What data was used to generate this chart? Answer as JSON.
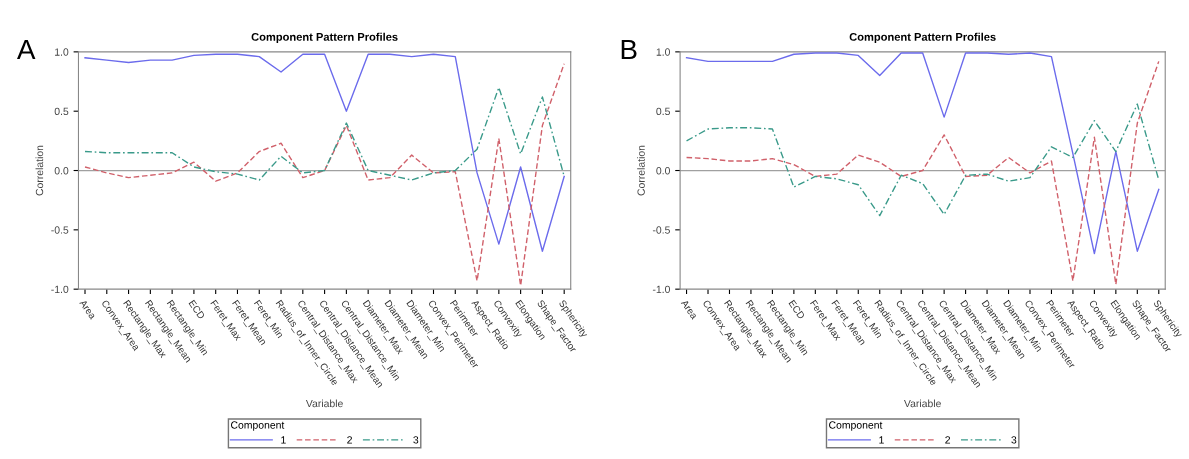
{
  "chart_data": [
    {
      "type": "line",
      "title": "Component Pattern Profiles",
      "xlabel": "Variable",
      "ylabel": "Correlation",
      "legend_title": "Component",
      "legend": "bottom",
      "grid": false,
      "annotations": [
        "A"
      ],
      "categories": [
        "Area",
        "Convex_Area",
        "Rectangle_Max",
        "Rectangle_Mean",
        "Rectangle_Min",
        "ECD",
        "Feret_Max",
        "Feret_Mean",
        "Feret_Min",
        "Radius_of_Inner_Circle",
        "Central_Distance_Max",
        "Central_Distance_Mean",
        "Central_Distance_Min",
        "Diameter_Max",
        "Diameter_Mean",
        "Diameter_Min",
        "Convex_Perimeter",
        "Perimeter",
        "Aspect_Ratio",
        "Convexity",
        "Elongation",
        "Shape_Factor",
        "Sphericity"
      ],
      "ylim": [
        -1.0,
        1.0
      ],
      "yticks": [
        {
          "value": -1.0,
          "label": "-1.0"
        },
        {
          "value": -0.5,
          "label": "-0.5"
        },
        {
          "value": 0.0,
          "label": "0.0"
        },
        {
          "value": 0.5,
          "label": "0.5"
        },
        {
          "value": 1.0,
          "label": "1.0"
        }
      ],
      "ref_lines": [
        {
          "axis": "y",
          "value": 0,
          "color": "#a0a0a0"
        }
      ],
      "series": [
        {
          "name": "1",
          "color": "#6b6bec",
          "line_style": "solid",
          "values": [
            0.95,
            0.93,
            0.91,
            0.93,
            0.93,
            0.97,
            0.98,
            0.98,
            0.96,
            0.83,
            0.98,
            0.98,
            0.5,
            0.98,
            0.98,
            0.96,
            0.98,
            0.96,
            -0.02,
            -0.62,
            0.03,
            -0.68,
            -0.05
          ]
        },
        {
          "name": "2",
          "color": "#d0606a",
          "line_style": "dashed",
          "values": [
            0.03,
            -0.02,
            -0.06,
            -0.04,
            -0.02,
            0.07,
            -0.09,
            -0.02,
            0.16,
            0.23,
            -0.06,
            0.0,
            0.38,
            -0.08,
            -0.06,
            0.13,
            -0.02,
            -0.01,
            -0.93,
            0.27,
            -0.97,
            0.38,
            0.9
          ]
        },
        {
          "name": "3",
          "color": "#3a9a8a",
          "line_style": "dashdot",
          "values": [
            0.16,
            0.15,
            0.15,
            0.15,
            0.15,
            0.03,
            -0.01,
            -0.03,
            -0.08,
            0.12,
            -0.02,
            0.0,
            0.4,
            0.0,
            -0.04,
            -0.08,
            -0.02,
            0.0,
            0.18,
            0.7,
            0.14,
            0.62,
            -0.05
          ]
        }
      ]
    },
    {
      "type": "line",
      "title": "Component Pattern Profiles",
      "xlabel": "Variable",
      "ylabel": "Correlation",
      "legend_title": "Component",
      "legend": "bottom",
      "grid": false,
      "annotations": [
        "B"
      ],
      "categories": [
        "Area",
        "Convex_Area",
        "Rectangle_Max",
        "Rectangle_Mean",
        "Rectangle_Min",
        "ECD",
        "Feret_Max",
        "Feret_Mean",
        "Feret_Min",
        "Radius_of_Inner_Circle",
        "Central_Distance_Max",
        "Central_Distance_Mean",
        "Central_Distance_Min",
        "Diameter_Max",
        "Diameter_Mean",
        "Diameter_Min",
        "Convex_Perimeter",
        "Perimeter",
        "Aspect_Ratio",
        "Convexity",
        "Elongation",
        "Shape_Factor",
        "Sphericity"
      ],
      "ylim": [
        -1.0,
        1.0
      ],
      "yticks": [
        {
          "value": -1.0,
          "label": "-1.0"
        },
        {
          "value": -0.5,
          "label": "-0.5"
        },
        {
          "value": 0.0,
          "label": "0.0"
        },
        {
          "value": 0.5,
          "label": "0.5"
        },
        {
          "value": 1.0,
          "label": "1.0"
        }
      ],
      "ref_lines": [
        {
          "axis": "y",
          "value": 0,
          "color": "#a0a0a0"
        }
      ],
      "series": [
        {
          "name": "1",
          "color": "#6b6bec",
          "line_style": "solid",
          "values": [
            0.95,
            0.92,
            0.92,
            0.92,
            0.92,
            0.98,
            0.99,
            0.99,
            0.97,
            0.8,
            0.99,
            0.99,
            0.45,
            0.99,
            0.99,
            0.98,
            0.99,
            0.96,
            0.14,
            -0.7,
            0.16,
            -0.68,
            -0.16
          ]
        },
        {
          "name": "2",
          "color": "#d0606a",
          "line_style": "dashed",
          "values": [
            0.11,
            0.1,
            0.08,
            0.08,
            0.1,
            0.05,
            -0.05,
            -0.03,
            0.13,
            0.07,
            -0.05,
            0.0,
            0.3,
            -0.05,
            -0.04,
            0.11,
            -0.02,
            0.08,
            -0.93,
            0.28,
            -0.96,
            0.4,
            0.92
          ]
        },
        {
          "name": "3",
          "color": "#3a9a8a",
          "line_style": "dashdot",
          "values": [
            0.25,
            0.35,
            0.36,
            0.36,
            0.35,
            -0.14,
            -0.05,
            -0.07,
            -0.12,
            -0.38,
            -0.04,
            -0.11,
            -0.37,
            -0.04,
            -0.03,
            -0.09,
            -0.06,
            0.2,
            0.11,
            0.42,
            0.16,
            0.56,
            -0.08
          ]
        }
      ]
    }
  ]
}
